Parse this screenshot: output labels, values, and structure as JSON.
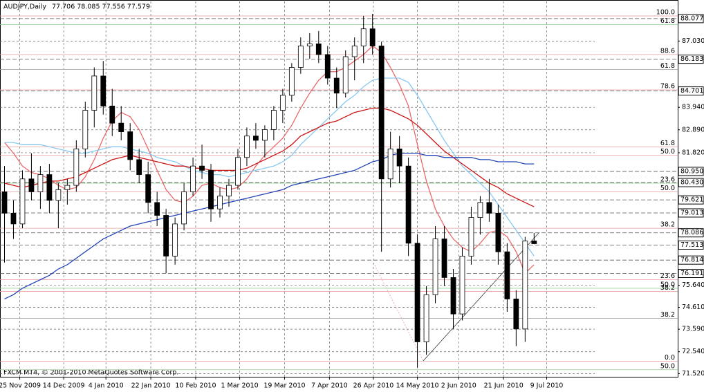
{
  "chart_data": {
    "type": "candlestick",
    "title": "AUDJPY,Daily",
    "ohlc_header": "77.706 78.085 77.556 77.579",
    "footer": "FXCM MT4, © 2001-2010 MetaQuotes Software Corp.",
    "open": [
      80.0,
      79.0,
      78.5,
      80.6,
      80.0,
      80.8,
      79.6,
      80.1,
      80.3,
      82.0,
      83.8,
      85.4,
      84.0,
      83.2,
      82.8,
      81.5,
      80.8,
      79.5,
      78.9,
      77.0,
      78.5,
      80.0,
      81.2,
      81.0,
      79.2,
      79.8,
      80.3,
      81.6,
      82.6,
      82.4,
      82.9,
      83.8,
      84.5,
      85.8,
      86.8,
      86.9,
      86.4,
      85.3,
      84.6,
      86.3,
      86.8,
      87.6,
      86.8,
      80.6,
      82.0,
      81.2,
      77.6,
      73.0,
      75.2,
      77.8,
      76.0,
      74.3,
      77.0,
      78.8,
      79.5,
      79.0,
      77.2,
      75.0,
      73.6,
      77.706
    ],
    "high": [
      81.2,
      79.6,
      81.0,
      81.8,
      81.2,
      81.3,
      80.4,
      80.6,
      82.4,
      84.2,
      85.8,
      86.1,
      84.8,
      84.0,
      83.2,
      82.0,
      81.4,
      80.0,
      79.2,
      78.8,
      80.4,
      81.6,
      82.2,
      81.3,
      80.2,
      80.6,
      82.0,
      83.0,
      83.2,
      83.1,
      84.0,
      84.8,
      86.0,
      87.2,
      87.4,
      87.5,
      86.8,
      85.8,
      86.6,
      87.2,
      88.2,
      88.3,
      87.0,
      82.8,
      82.6,
      81.6,
      78.0,
      75.6,
      78.4,
      78.4,
      76.4,
      77.4,
      79.3,
      79.8,
      80.6,
      79.4,
      77.6,
      75.4,
      77.9,
      78.085
    ],
    "low": [
      76.7,
      77.8,
      78.3,
      79.6,
      79.2,
      79.0,
      78.3,
      79.4,
      80.0,
      81.6,
      83.0,
      83.6,
      82.6,
      82.4,
      81.0,
      80.4,
      79.0,
      78.4,
      76.2,
      76.6,
      78.2,
      79.8,
      80.6,
      78.6,
      78.8,
      79.3,
      80.1,
      81.2,
      82.0,
      81.6,
      82.4,
      83.2,
      84.2,
      85.5,
      86.2,
      86.0,
      85.0,
      83.9,
      84.4,
      85.2,
      86.0,
      86.4,
      77.2,
      80.2,
      80.4,
      77.0,
      71.8,
      72.4,
      74.8,
      75.6,
      73.6,
      74.0,
      76.6,
      78.0,
      78.6,
      76.6,
      74.4,
      72.8,
      73.0,
      77.556
    ],
    "close": [
      79.0,
      78.5,
      80.6,
      80.0,
      80.8,
      79.6,
      80.1,
      80.3,
      82.0,
      83.8,
      85.4,
      84.0,
      83.2,
      82.8,
      81.5,
      80.8,
      79.5,
      78.9,
      77.0,
      78.5,
      80.0,
      81.2,
      81.0,
      79.2,
      79.8,
      80.3,
      81.6,
      82.6,
      82.4,
      82.9,
      83.8,
      84.5,
      85.8,
      86.8,
      86.9,
      86.4,
      85.3,
      84.6,
      86.3,
      86.8,
      87.6,
      86.8,
      80.6,
      82.0,
      81.2,
      77.6,
      73.0,
      75.2,
      77.8,
      76.0,
      74.3,
      77.0,
      78.8,
      79.5,
      79.0,
      77.2,
      75.0,
      73.6,
      77.7,
      77.579
    ],
    "series": [
      {
        "color": "#e8696b",
        "values": [
          82.3,
          81.8,
          81.2,
          80.9,
          80.8,
          80.6,
          80.3,
          80.1,
          80.2,
          80.7,
          81.5,
          82.5,
          83.3,
          83.7,
          83.5,
          82.9,
          82.0,
          81.0,
          80.1,
          79.6,
          79.5,
          79.8,
          80.3,
          80.4,
          80.2,
          80.1,
          80.2,
          80.6,
          81.2,
          81.7,
          82.1,
          82.5,
          83.1,
          83.9,
          84.6,
          85.2,
          85.6,
          85.6,
          85.8,
          86.1,
          86.4,
          86.8,
          86.5,
          85.8,
          85.0,
          84.0,
          82.2,
          80.5,
          79.2,
          78.4,
          77.8,
          77.4,
          77.2,
          77.6,
          78.1,
          78.2,
          77.9,
          77.2,
          76.2,
          76.6
        ]
      },
      {
        "color": "#87c8f0",
        "values": [
          82.3,
          82.3,
          82.2,
          82.2,
          82.2,
          82.1,
          82.0,
          81.9,
          81.8,
          81.8,
          81.9,
          82.0,
          82.1,
          82.1,
          82.0,
          81.9,
          81.8,
          81.6,
          81.5,
          81.4,
          81.2,
          81.0,
          80.9,
          80.8,
          80.8,
          80.7,
          80.8,
          80.9,
          81.0,
          81.1,
          81.2,
          81.4,
          81.7,
          82.2,
          82.6,
          83.0,
          83.4,
          83.8,
          84.2,
          84.5,
          84.9,
          85.2,
          85.3,
          85.3,
          85.3,
          85.1,
          84.5,
          83.8,
          83.1,
          82.4,
          81.8,
          81.2,
          80.8,
          80.4,
          80.0,
          79.4,
          78.8,
          78.2,
          77.6,
          77.0
        ]
      },
      {
        "color": "#cc1111",
        "values": [
          80.4,
          80.3,
          80.2,
          80.3,
          80.4,
          80.5,
          80.5,
          80.6,
          80.7,
          80.9,
          81.1,
          81.3,
          81.5,
          81.6,
          81.7,
          81.6,
          81.5,
          81.4,
          81.3,
          81.2,
          81.2,
          81.1,
          81.1,
          81.0,
          81.0,
          81.0,
          81.0,
          81.1,
          81.3,
          81.5,
          81.7,
          81.9,
          82.2,
          82.6,
          82.8,
          83.0,
          83.2,
          83.3,
          83.5,
          83.7,
          83.8,
          83.9,
          83.9,
          83.8,
          83.6,
          83.4,
          83.1,
          82.7,
          82.3,
          81.9,
          81.6,
          81.3,
          81.0,
          80.7,
          80.4,
          80.2,
          79.9,
          79.7,
          79.5,
          79.3
        ]
      },
      {
        "color": "#2243b8",
        "values": [
          75.0,
          75.2,
          75.5,
          75.7,
          75.9,
          76.1,
          76.4,
          76.6,
          76.9,
          77.2,
          77.5,
          77.8,
          78.0,
          78.2,
          78.4,
          78.5,
          78.6,
          78.7,
          78.8,
          78.9,
          79.0,
          79.1,
          79.2,
          79.3,
          79.4,
          79.5,
          79.6,
          79.7,
          79.8,
          79.9,
          80.0,
          80.1,
          80.3,
          80.4,
          80.5,
          80.6,
          80.7,
          80.8,
          80.9,
          81.0,
          81.2,
          81.4,
          81.5,
          81.7,
          81.8,
          81.8,
          81.8,
          81.7,
          81.7,
          81.6,
          81.6,
          81.6,
          81.6,
          81.5,
          81.5,
          81.4,
          81.4,
          81.4,
          81.3,
          81.3
        ]
      }
    ],
    "ylim": [
      71.37,
      88.88
    ],
    "yticks": [
      {
        "value": 87.03,
        "label": "87.030"
      },
      {
        "value": 83.94,
        "label": "83.940"
      },
      {
        "value": 82.89,
        "label": "82.890"
      },
      {
        "value": 81.82,
        "label": "81.820"
      },
      {
        "value": 75.64,
        "label": "75.640"
      },
      {
        "value": 74.61,
        "label": "74.610"
      },
      {
        "value": 73.59,
        "label": "73.590"
      },
      {
        "value": 72.54,
        "label": "72.540"
      },
      {
        "value": 71.52,
        "label": "71.520"
      }
    ],
    "price_levels": [
      {
        "value": 88.077,
        "label": "88.077"
      },
      {
        "value": 86.183,
        "label": "86.183"
      },
      {
        "value": 84.701,
        "label": "84.701"
      },
      {
        "value": 80.95,
        "label": "80.950"
      },
      {
        "value": 80.43,
        "label": "80.430"
      },
      {
        "value": 79.621,
        "label": "79.621"
      },
      {
        "value": 79.013,
        "label": "79.013"
      },
      {
        "value": 78.086,
        "label": "78.086"
      },
      {
        "value": 77.513,
        "label": "77.513"
      },
      {
        "value": 76.814,
        "label": "76.814"
      },
      {
        "value": 76.191,
        "label": "76.191"
      }
    ],
    "fib_levels": [
      {
        "value": 88.2,
        "label": "100.0",
        "color": "#e8a0a0"
      },
      {
        "value": 87.8,
        "label": "61.8",
        "color": "#90d090"
      },
      {
        "value": 86.4,
        "label": "88.6",
        "color": "#e8a0a0"
      },
      {
        "value": 85.7,
        "label": "61.8",
        "color": "#a0a0a0"
      },
      {
        "value": 84.75,
        "label": "78.6",
        "color": "#e8a0a0"
      },
      {
        "value": 82.1,
        "label": "61.8",
        "color": "#e8a0a0"
      },
      {
        "value": 81.7,
        "label": "50.0",
        "color": "#e8a0a0"
      },
      {
        "value": 80.4,
        "label": "23.6",
        "color": "#90d090"
      },
      {
        "value": 80.0,
        "label": "50.0",
        "color": "#e8a0a0"
      },
      {
        "value": 78.3,
        "label": "38.2",
        "color": "#e8a0a0"
      },
      {
        "value": 75.9,
        "label": "23.6",
        "color": "#e8a0a0"
      },
      {
        "value": 75.5,
        "label": "50.0",
        "color": "#90d090"
      },
      {
        "value": 75.35,
        "label": "38.2",
        "color": "#e8a0a0"
      },
      {
        "value": 74.1,
        "label": "38.2",
        "color": "#a0a0a0"
      },
      {
        "value": 72.1,
        "label": "0.0",
        "color": "#e8a0a0"
      },
      {
        "value": 71.7,
        "label": "50.0",
        "color": "#90d090"
      }
    ],
    "xlim": [
      -0.5,
      75
    ],
    "xticks": [
      {
        "value": 1.7,
        "label": "25 Nov 2009"
      },
      {
        "value": 6.6,
        "label": "14 Dec 2009"
      },
      {
        "value": 11.3,
        "label": "4 Jan 2010"
      },
      {
        "value": 16.3,
        "label": "22 Jan 2010"
      },
      {
        "value": 21.3,
        "label": "10 Feb 2010"
      },
      {
        "value": 26.2,
        "label": "1 Mar 2010"
      },
      {
        "value": 31.2,
        "label": "19 Mar 2010"
      },
      {
        "value": 36.2,
        "label": "7 Apr 2010"
      },
      {
        "value": 41.1,
        "label": "26 Apr 2010"
      },
      {
        "value": 46.0,
        "label": "14 May 2010"
      },
      {
        "value": 50.6,
        "label": "2 Jun 2010"
      },
      {
        "value": 55.6,
        "label": "21 Jun 2010"
      },
      {
        "value": 60.4,
        "label": "9 Jul 2010"
      }
    ],
    "grid": true
  }
}
